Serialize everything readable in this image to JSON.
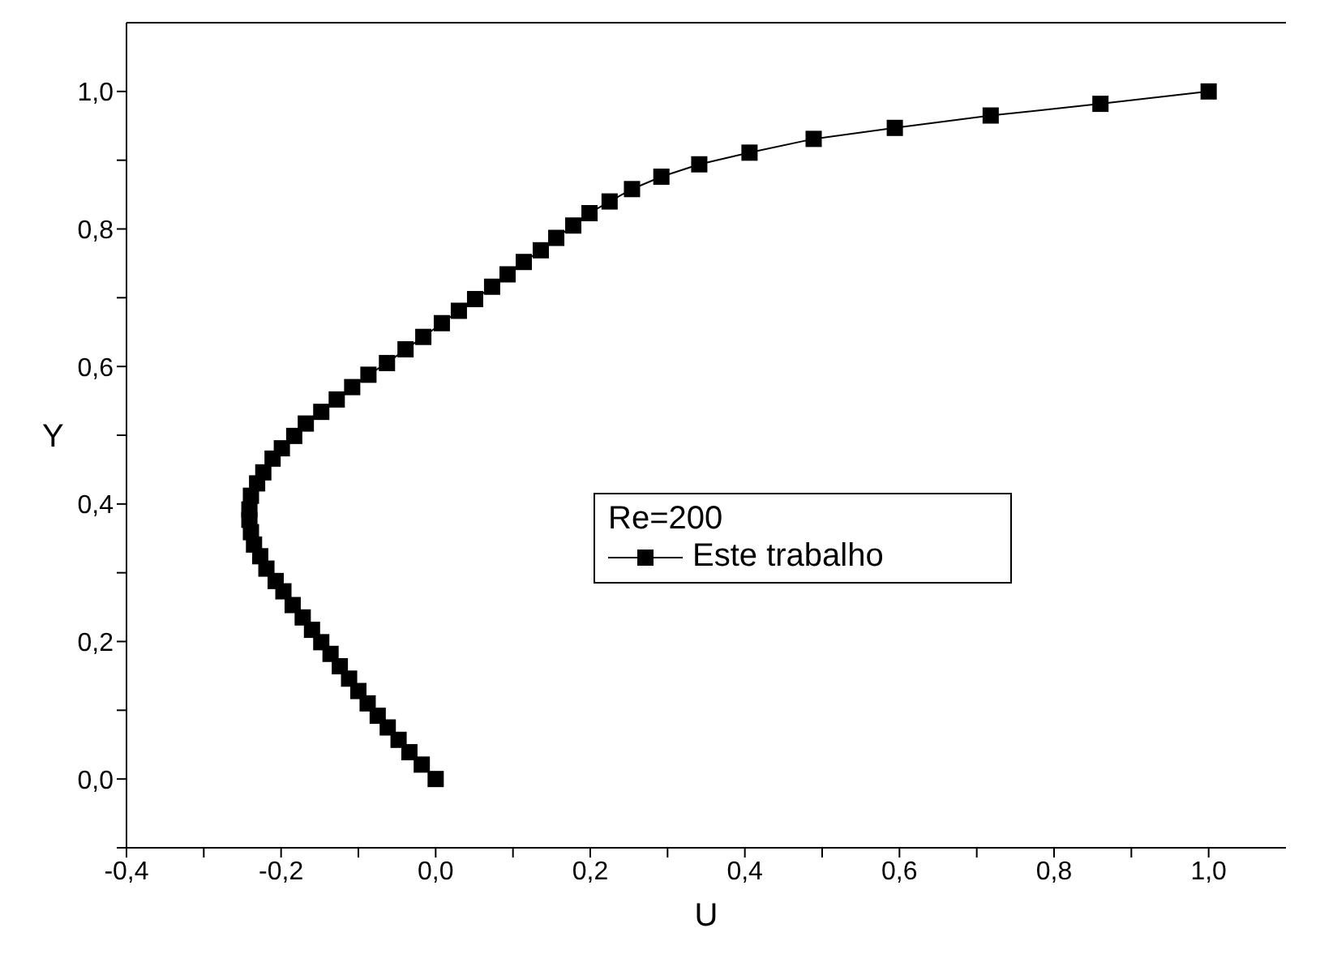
{
  "chart_data": {
    "type": "line",
    "xlabel": "U",
    "ylabel": "Y",
    "legend_title": "Re=200",
    "legend": "center",
    "marker": "square",
    "line_style": "solid",
    "xlim": [
      -0.4,
      1.1
    ],
    "ylim": [
      -0.1,
      1.1
    ],
    "xticks": [
      {
        "value": -0.4,
        "label": "-0,4"
      },
      {
        "value": -0.3,
        "label": null
      },
      {
        "value": -0.2,
        "label": "-0,2"
      },
      {
        "value": -0.1,
        "label": null
      },
      {
        "value": 0,
        "label": "0,0"
      },
      {
        "value": 0.1,
        "label": null
      },
      {
        "value": 0.2,
        "label": "0,2"
      },
      {
        "value": 0.3,
        "label": null
      },
      {
        "value": 0.4,
        "label": "0,4"
      },
      {
        "value": 0.5,
        "label": null
      },
      {
        "value": 0.6,
        "label": "0,6"
      },
      {
        "value": 0.7,
        "label": null
      },
      {
        "value": 0.8,
        "label": "0,8"
      },
      {
        "value": 0.9,
        "label": null
      },
      {
        "value": 1.0,
        "label": "1,0"
      }
    ],
    "yticks": [
      {
        "value": -0.1,
        "label": null
      },
      {
        "value": 0,
        "label": "0,0"
      },
      {
        "value": 0.1,
        "label": null
      },
      {
        "value": 0.2,
        "label": "0,2"
      },
      {
        "value": 0.3,
        "label": null
      },
      {
        "value": 0.4,
        "label": "0,4"
      },
      {
        "value": 0.5,
        "label": null
      },
      {
        "value": 0.6,
        "label": "0,6"
      },
      {
        "value": 0.7,
        "label": null
      },
      {
        "value": 0.8,
        "label": "0,8"
      },
      {
        "value": 0.9,
        "label": null
      },
      {
        "value": 1.0,
        "label": "1,0"
      }
    ],
    "series": [
      {
        "name": "Este trabalho",
        "color": "#000000",
        "x": [
          0,
          -0.018,
          -0.034,
          -0.048,
          -0.062,
          -0.075,
          -0.088,
          -0.1,
          -0.112,
          -0.124,
          -0.136,
          -0.148,
          -0.16,
          -0.172,
          -0.185,
          -0.197,
          -0.207,
          -0.219,
          -0.227,
          -0.235,
          -0.239,
          -0.241,
          -0.241,
          -0.239,
          -0.231,
          -0.223,
          -0.211,
          -0.199,
          -0.183,
          -0.168,
          -0.148,
          -0.128,
          -0.108,
          -0.087,
          -0.063,
          -0.039,
          -0.016,
          0.008,
          0.03,
          0.051,
          0.073,
          0.093,
          0.114,
          0.136,
          0.156,
          0.178,
          0.199,
          0.225,
          0.254,
          0.292,
          0.341,
          0.406,
          0.489,
          0.594,
          0.718,
          0.86,
          1.0
        ],
        "values": [
          0,
          0.021,
          0.039,
          0.057,
          0.075,
          0.092,
          0.11,
          0.128,
          0.146,
          0.164,
          0.182,
          0.199,
          0.217,
          0.235,
          0.253,
          0.273,
          0.288,
          0.306,
          0.324,
          0.341,
          0.359,
          0.377,
          0.392,
          0.412,
          0.43,
          0.446,
          0.466,
          0.481,
          0.499,
          0.517,
          0.534,
          0.552,
          0.57,
          0.588,
          0.605,
          0.625,
          0.643,
          0.663,
          0.681,
          0.698,
          0.716,
          0.734,
          0.752,
          0.769,
          0.787,
          0.805,
          0.823,
          0.84,
          0.858,
          0.876,
          0.894,
          0.911,
          0.931,
          0.947,
          0.965,
          0.982,
          1.0
        ]
      }
    ]
  }
}
